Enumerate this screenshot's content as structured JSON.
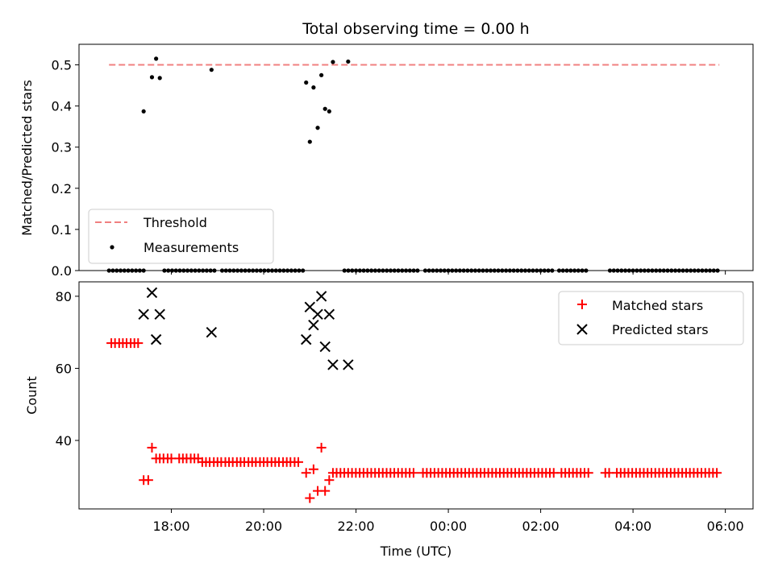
{
  "chart_data": [
    {
      "type": "scatter",
      "title": "Total observing time = 0.00 h",
      "xlabel": "",
      "ylabel": "Matched/Predicted stars",
      "ylim": [
        0,
        0.55
      ],
      "xlim_hours": [
        16.0,
        30.6
      ],
      "yticks": [
        "0.0",
        "0.1",
        "0.2",
        "0.3",
        "0.4",
        "0.5"
      ],
      "ytick_values": [
        0,
        0.1,
        0.2,
        0.3,
        0.4,
        0.5
      ],
      "threshold": {
        "name": "Threshold",
        "y": 0.5,
        "x_start": 16.65,
        "x_end": 29.87,
        "color": "#f08080"
      },
      "measurements": {
        "name": "Measurements",
        "color": "#000000",
        "points": [
          [
            17.4,
            0.387
          ],
          [
            17.58,
            0.47
          ],
          [
            17.67,
            0.515
          ],
          [
            17.75,
            0.468
          ],
          [
            18.87,
            0.488
          ],
          [
            20.92,
            0.457
          ],
          [
            21.0,
            0.313
          ],
          [
            21.08,
            0.445
          ],
          [
            21.17,
            0.347
          ],
          [
            21.25,
            0.475
          ],
          [
            21.33,
            0.393
          ],
          [
            21.42,
            0.387
          ],
          [
            21.5,
            0.507
          ],
          [
            21.83,
            0.508
          ]
        ],
        "zero_series_ranges": [
          [
            16.65,
            17.45
          ],
          [
            17.85,
            19.0
          ],
          [
            19.1,
            20.9
          ],
          [
            21.75,
            23.4
          ],
          [
            23.5,
            26.3
          ],
          [
            26.4,
            27.0
          ],
          [
            27.5,
            29.87
          ]
        ]
      },
      "legend": {
        "placement": "lower-left",
        "entries": [
          "Threshold",
          "Measurements"
        ]
      },
      "grid": false
    },
    {
      "type": "scatter",
      "title": "",
      "xlabel": "Time (UTC)",
      "ylabel": "Count",
      "ylim": [
        21,
        84
      ],
      "xlim_hours": [
        16.0,
        30.6
      ],
      "yticks": [
        "40",
        "60",
        "80"
      ],
      "ytick_values": [
        40,
        60,
        80
      ],
      "xticks": [
        "18:00",
        "20:00",
        "22:00",
        "00:00",
        "02:00",
        "04:00",
        "06:00"
      ],
      "xtick_values": [
        18,
        20,
        22,
        24,
        26,
        28,
        30
      ],
      "series": [
        {
          "name": "Matched stars",
          "marker": "plus",
          "color": "#ff0000",
          "points": [
            [
              16.7,
              67
            ],
            [
              16.78,
              67
            ],
            [
              16.87,
              67
            ],
            [
              16.95,
              67
            ],
            [
              17.03,
              67
            ],
            [
              17.12,
              67
            ],
            [
              17.2,
              67
            ],
            [
              17.28,
              67
            ],
            [
              17.4,
              29
            ],
            [
              17.5,
              29
            ],
            [
              17.58,
              38
            ],
            [
              17.67,
              35
            ],
            [
              17.75,
              35
            ],
            [
              17.83,
              35
            ],
            [
              17.92,
              35
            ],
            [
              18.0,
              35
            ],
            [
              18.17,
              35
            ],
            [
              18.25,
              35
            ],
            [
              18.33,
              35
            ],
            [
              18.42,
              35
            ],
            [
              18.5,
              35
            ],
            [
              18.58,
              35
            ],
            [
              18.67,
              34
            ],
            [
              18.75,
              34
            ],
            [
              18.83,
              34
            ],
            [
              18.92,
              34
            ],
            [
              19.0,
              34
            ],
            [
              19.08,
              34
            ],
            [
              19.17,
              34
            ],
            [
              19.25,
              34
            ],
            [
              19.33,
              34
            ],
            [
              19.42,
              34
            ],
            [
              19.5,
              34
            ],
            [
              19.58,
              34
            ],
            [
              19.67,
              34
            ],
            [
              19.75,
              34
            ],
            [
              19.83,
              34
            ],
            [
              19.92,
              34
            ],
            [
              20.0,
              34
            ],
            [
              20.08,
              34
            ],
            [
              20.17,
              34
            ],
            [
              20.25,
              34
            ],
            [
              20.33,
              34
            ],
            [
              20.42,
              34
            ],
            [
              20.5,
              34
            ],
            [
              20.58,
              34
            ],
            [
              20.67,
              34
            ],
            [
              20.75,
              34
            ],
            [
              20.92,
              31
            ],
            [
              21.0,
              24
            ],
            [
              21.08,
              32
            ],
            [
              21.17,
              26
            ],
            [
              21.25,
              38
            ],
            [
              21.33,
              26
            ],
            [
              21.42,
              29
            ],
            [
              21.5,
              31
            ]
          ],
          "flat_run": {
            "y": 31,
            "ranges": [
              [
                21.58,
                23.3
              ],
              [
                23.45,
                26.3
              ],
              [
                26.45,
                27.05
              ],
              [
                27.4,
                27.55
              ],
              [
                27.65,
                29.85
              ]
            ]
          }
        },
        {
          "name": "Predicted stars",
          "marker": "x",
          "color": "#000000",
          "points": [
            [
              17.4,
              75
            ],
            [
              17.58,
              81
            ],
            [
              17.67,
              68
            ],
            [
              17.75,
              75
            ],
            [
              18.87,
              70
            ],
            [
              20.92,
              68
            ],
            [
              21.0,
              77
            ],
            [
              21.08,
              72
            ],
            [
              21.17,
              75
            ],
            [
              21.25,
              80
            ],
            [
              21.33,
              66
            ],
            [
              21.42,
              75
            ],
            [
              21.5,
              61
            ],
            [
              21.83,
              61
            ]
          ]
        }
      ],
      "legend": {
        "placement": "top-right",
        "entries": [
          "Matched stars",
          "Predicted stars"
        ]
      },
      "grid": false
    }
  ]
}
